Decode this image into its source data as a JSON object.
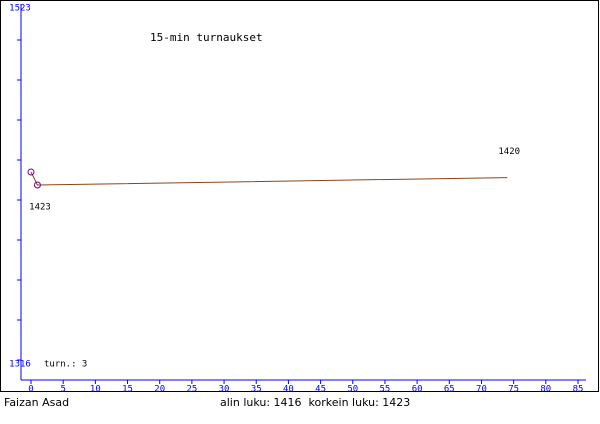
{
  "chart_data": {
    "type": "line",
    "title": "15-min turnaukset",
    "x": [
      0,
      1,
      74
    ],
    "values": [
      1423,
      1416,
      1420
    ],
    "color": "#8b4513",
    "marker_color": "#800080",
    "xlim": [
      0,
      85
    ],
    "xticks": [
      0,
      5,
      10,
      15,
      20,
      25,
      30,
      35,
      40,
      45,
      50,
      55,
      60,
      65,
      70,
      75,
      80,
      85
    ],
    "ylim": [
      1316,
      1523
    ],
    "yticks": [
      1316,
      1523
    ],
    "axis_color": "#0000ff",
    "labeled_points": [
      0,
      2
    ],
    "count_label": "turn.: 3",
    "player": "Faizan Asad",
    "summary": "alin luku: 1416  korkein luku: 1423"
  }
}
